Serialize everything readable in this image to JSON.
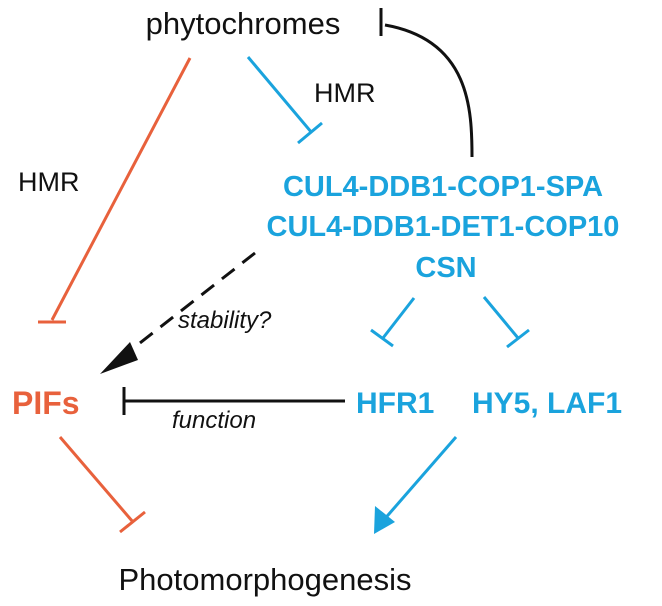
{
  "colors": {
    "black": "#111111",
    "blue": "#1aa3dd",
    "orange": "#e8613c"
  },
  "nodes": {
    "phytochromes": "phytochromes",
    "complex_line1": "CUL4-DDB1-COP1-SPA",
    "complex_line2": "CUL4-DDB1-DET1-COP10",
    "complex_line3": "CSN",
    "pifs": "PIFs",
    "hfr1": "HFR1",
    "hy5_laf1": "HY5, LAF1",
    "photomorphogenesis": "Photomorphogenesis"
  },
  "edge_labels": {
    "hmr_blue": "HMR",
    "hmr_orange": "HMR",
    "stability": "stability?",
    "function": "function"
  }
}
